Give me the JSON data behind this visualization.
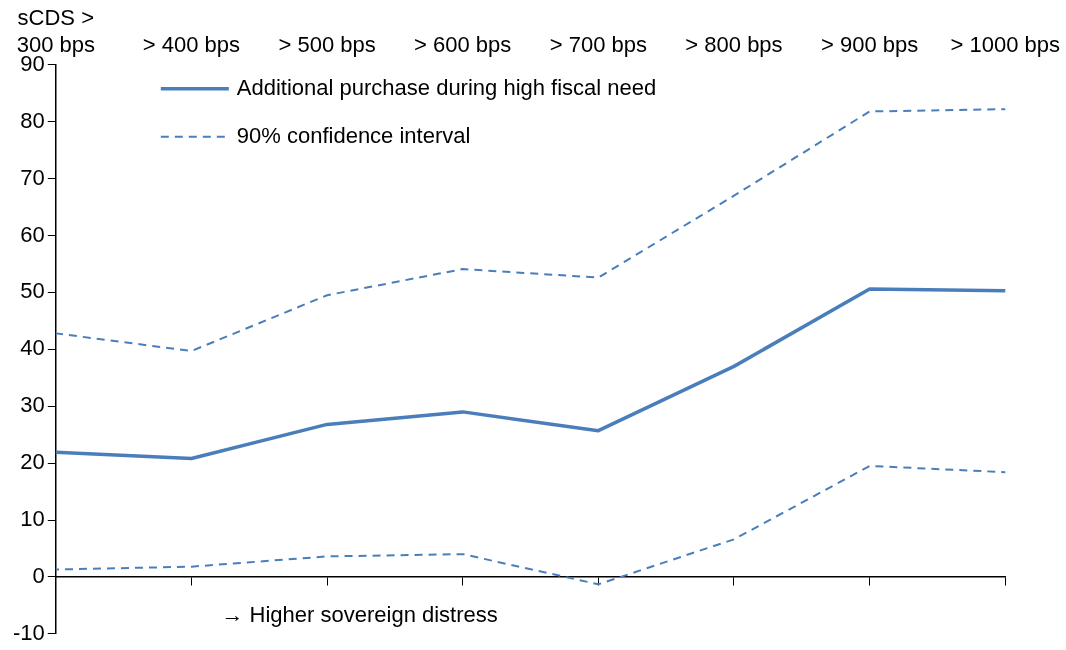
{
  "chart_data": {
    "type": "line",
    "categories": [
      "sCDS >\n300 bps",
      "> 400 bps",
      "> 500 bps",
      "> 600 bps",
      "> 700 bps",
      "> 800 bps",
      "> 900 bps",
      "> 1000 bps"
    ],
    "series": [
      {
        "name": "Additional purchase during high fiscal need",
        "color": "#4a7ebb",
        "line_style": "solid",
        "values": [
          21.9,
          20.8,
          26.8,
          29.0,
          25.7,
          37.0,
          50.6,
          50.3
        ]
      },
      {
        "name": "90% confidence interval",
        "color": "#4a7ebb",
        "line_style": "dashed",
        "values": [
          42.8,
          39.7,
          49.5,
          54.1,
          52.6,
          67.0,
          81.8,
          82.2
        ]
      },
      {
        "color": "#4a7ebb",
        "line_style": "dashed",
        "values": [
          1.3,
          1.8,
          3.6,
          4.0,
          -1.3,
          6.6,
          19.5,
          18.4
        ]
      }
    ],
    "ylim": [
      -10,
      90
    ],
    "yticks": [
      -10,
      0,
      10,
      20,
      30,
      40,
      50,
      60,
      70,
      80,
      90
    ],
    "legend": "top left",
    "marker": "none",
    "annotations": [
      "→ Higher sovereign distress"
    ]
  }
}
